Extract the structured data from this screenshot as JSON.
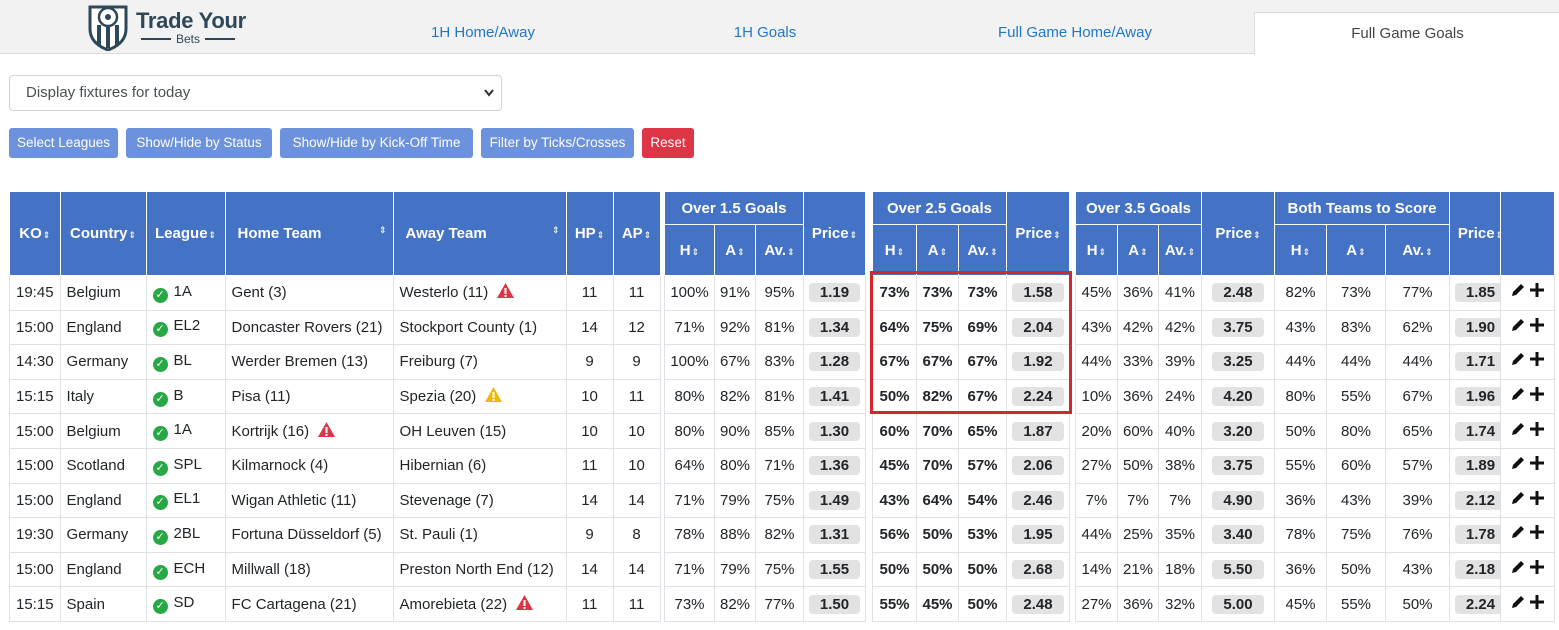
{
  "brand": {
    "title": "Trade Your",
    "subtitle": "Bets"
  },
  "tabs": [
    "1H Home/Away",
    "1H Goals",
    "Full Game Home/Away",
    "Full Game Goals"
  ],
  "fixture_select": {
    "value": "Display fixtures for today"
  },
  "buttons": {
    "select_leagues": "Select Leagues",
    "status": "Show/Hide by Status",
    "kickoff": "Show/Hide by Kick-Off Time",
    "ticks": "Filter by Ticks/Crosses",
    "reset": "Reset"
  },
  "headers": {
    "ko": "KO",
    "country": "Country",
    "league": "League",
    "home": "Home Team",
    "away": "Away Team",
    "hp": "HP",
    "ap": "AP",
    "h": "H",
    "a": "A",
    "av": "Av.",
    "price": "Price"
  },
  "groups": [
    "Over 1.5 Goals",
    "Over 2.5 Goals",
    "Over 3.5 Goals",
    "Both Teams to Score"
  ],
  "rows": [
    {
      "ko": "19:45",
      "country": "Belgium",
      "league": "1A",
      "home": "Gent (3)",
      "away": "Westerlo (11)",
      "hp": "11",
      "ap": "11",
      "o15": [
        "100%",
        "91%",
        "95%"
      ],
      "o15p": "1.19",
      "o25": [
        "73%",
        "73%",
        "73%"
      ],
      "o25p": "1.58",
      "o35": [
        "45%",
        "36%",
        "41%"
      ],
      "o35p": "2.48",
      "btts": [
        "82%",
        "73%",
        "77%"
      ],
      "bttsp": "1.85",
      "home_warn": "",
      "away_warn": "red"
    },
    {
      "ko": "15:00",
      "country": "England",
      "league": "EL2",
      "home": "Doncaster Rovers (21)",
      "away": "Stockport County (1)",
      "hp": "14",
      "ap": "12",
      "o15": [
        "71%",
        "92%",
        "81%"
      ],
      "o15p": "1.34",
      "o25": [
        "64%",
        "75%",
        "69%"
      ],
      "o25p": "2.04",
      "o35": [
        "43%",
        "42%",
        "42%"
      ],
      "o35p": "3.75",
      "btts": [
        "43%",
        "83%",
        "62%"
      ],
      "bttsp": "1.90",
      "home_warn": "",
      "away_warn": ""
    },
    {
      "ko": "14:30",
      "country": "Germany",
      "league": "BL",
      "home": "Werder Bremen (13)",
      "away": "Freiburg (7)",
      "hp": "9",
      "ap": "9",
      "o15": [
        "100%",
        "67%",
        "83%"
      ],
      "o15p": "1.28",
      "o25": [
        "67%",
        "67%",
        "67%"
      ],
      "o25p": "1.92",
      "o35": [
        "44%",
        "33%",
        "39%"
      ],
      "o35p": "3.25",
      "btts": [
        "44%",
        "44%",
        "44%"
      ],
      "bttsp": "1.71",
      "home_warn": "",
      "away_warn": ""
    },
    {
      "ko": "15:15",
      "country": "Italy",
      "league": "B",
      "home": "Pisa (11)",
      "away": "Spezia (20)",
      "hp": "10",
      "ap": "11",
      "o15": [
        "80%",
        "82%",
        "81%"
      ],
      "o15p": "1.41",
      "o25": [
        "50%",
        "82%",
        "67%"
      ],
      "o25p": "2.24",
      "o35": [
        "10%",
        "36%",
        "24%"
      ],
      "o35p": "4.20",
      "btts": [
        "80%",
        "55%",
        "67%"
      ],
      "bttsp": "1.96",
      "home_warn": "",
      "away_warn": "yellow"
    },
    {
      "ko": "15:00",
      "country": "Belgium",
      "league": "1A",
      "home": "Kortrijk (16)",
      "away": "OH Leuven (15)",
      "hp": "10",
      "ap": "10",
      "o15": [
        "80%",
        "90%",
        "85%"
      ],
      "o15p": "1.30",
      "o25": [
        "60%",
        "70%",
        "65%"
      ],
      "o25p": "1.87",
      "o35": [
        "20%",
        "60%",
        "40%"
      ],
      "o35p": "3.20",
      "btts": [
        "50%",
        "80%",
        "65%"
      ],
      "bttsp": "1.74",
      "home_warn": "red",
      "away_warn": ""
    },
    {
      "ko": "15:00",
      "country": "Scotland",
      "league": "SPL",
      "home": "Kilmarnock (4)",
      "away": "Hibernian (6)",
      "hp": "11",
      "ap": "10",
      "o15": [
        "64%",
        "80%",
        "71%"
      ],
      "o15p": "1.36",
      "o25": [
        "45%",
        "70%",
        "57%"
      ],
      "o25p": "2.06",
      "o35": [
        "27%",
        "50%",
        "38%"
      ],
      "o35p": "3.75",
      "btts": [
        "55%",
        "60%",
        "57%"
      ],
      "bttsp": "1.89",
      "home_warn": "",
      "away_warn": ""
    },
    {
      "ko": "15:00",
      "country": "England",
      "league": "EL1",
      "home": "Wigan Athletic (11)",
      "away": "Stevenage (7)",
      "hp": "14",
      "ap": "14",
      "o15": [
        "71%",
        "79%",
        "75%"
      ],
      "o15p": "1.49",
      "o25": [
        "43%",
        "64%",
        "54%"
      ],
      "o25p": "2.46",
      "o35": [
        "7%",
        "7%",
        "7%"
      ],
      "o35p": "4.90",
      "btts": [
        "36%",
        "43%",
        "39%"
      ],
      "bttsp": "2.12",
      "home_warn": "",
      "away_warn": ""
    },
    {
      "ko": "19:30",
      "country": "Germany",
      "league": "2BL",
      "home": "Fortuna Düsseldorf (5)",
      "away": "St. Pauli (1)",
      "hp": "9",
      "ap": "8",
      "o15": [
        "78%",
        "88%",
        "82%"
      ],
      "o15p": "1.31",
      "o25": [
        "56%",
        "50%",
        "53%"
      ],
      "o25p": "1.95",
      "o35": [
        "44%",
        "25%",
        "35%"
      ],
      "o35p": "3.40",
      "btts": [
        "78%",
        "75%",
        "76%"
      ],
      "bttsp": "1.78",
      "home_warn": "",
      "away_warn": ""
    },
    {
      "ko": "15:00",
      "country": "England",
      "league": "ECH",
      "home": "Millwall (18)",
      "away": "Preston North End (12)",
      "hp": "14",
      "ap": "14",
      "o15": [
        "71%",
        "79%",
        "75%"
      ],
      "o15p": "1.55",
      "o25": [
        "50%",
        "50%",
        "50%"
      ],
      "o25p": "2.68",
      "o35": [
        "14%",
        "21%",
        "18%"
      ],
      "o35p": "5.50",
      "btts": [
        "36%",
        "50%",
        "43%"
      ],
      "bttsp": "2.18",
      "home_warn": "",
      "away_warn": ""
    },
    {
      "ko": "15:15",
      "country": "Spain",
      "league": "SD",
      "home": "FC Cartagena (21)",
      "away": "Amorebieta (22)",
      "hp": "11",
      "ap": "11",
      "o15": [
        "73%",
        "82%",
        "77%"
      ],
      "o15p": "1.50",
      "o25": [
        "55%",
        "45%",
        "50%"
      ],
      "o25p": "2.48",
      "o35": [
        "27%",
        "36%",
        "32%"
      ],
      "o35p": "5.00",
      "btts": [
        "45%",
        "55%",
        "50%"
      ],
      "bttsp": "2.24",
      "home_warn": "",
      "away_warn": "red"
    }
  ],
  "colors": {
    "header_blue": "#4472c4",
    "button_blue": "#6d92dd",
    "reset_red": "#dc3545",
    "tick_green": "#28a745",
    "warn_red": "#dc3545",
    "warn_yellow": "#f2b705",
    "highlight": "#d9232e"
  }
}
